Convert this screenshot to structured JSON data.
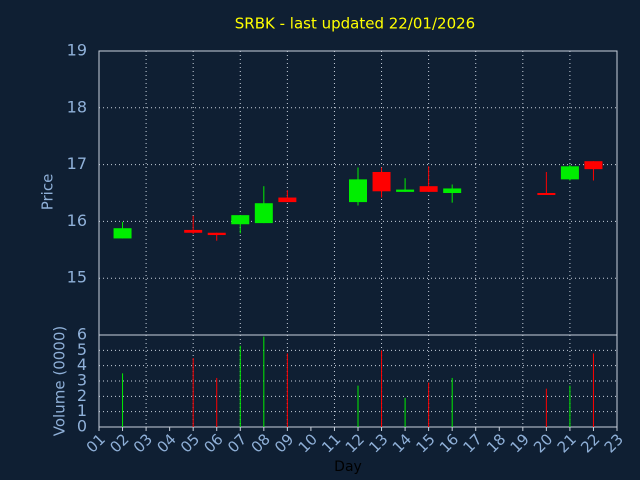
{
  "chart_data": {
    "type": "candlestick",
    "title": "SRBK - last updated 22/01/2026",
    "xlabel": "Day",
    "ylabel": "Price",
    "volume_label": "Volume (0000)",
    "categories": [
      "01",
      "02",
      "03",
      "04",
      "05",
      "06",
      "07",
      "08",
      "09",
      "10",
      "11",
      "12",
      "13",
      "14",
      "15",
      "16",
      "17",
      "18",
      "19",
      "20",
      "21",
      "22",
      "23"
    ],
    "open": [
      null,
      15.7,
      null,
      null,
      15.85,
      15.8,
      15.95,
      15.97,
      16.42,
      null,
      null,
      16.34,
      16.87,
      16.52,
      16.62,
      16.5,
      null,
      null,
      null,
      16.5,
      16.74,
      17.06,
      null
    ],
    "high": [
      null,
      15.99,
      null,
      null,
      16.1,
      15.8,
      16.11,
      16.62,
      16.55,
      null,
      null,
      16.95,
      16.95,
      16.76,
      16.97,
      16.65,
      null,
      null,
      null,
      16.87,
      17.0,
      17.06,
      null
    ],
    "low": [
      null,
      15.7,
      null,
      null,
      15.78,
      15.66,
      15.79,
      15.97,
      16.34,
      null,
      null,
      16.28,
      16.42,
      16.52,
      16.52,
      16.33,
      null,
      null,
      null,
      16.48,
      16.72,
      16.72,
      null
    ],
    "close": [
      null,
      15.88,
      null,
      null,
      15.8,
      15.76,
      16.11,
      16.32,
      16.34,
      null,
      null,
      16.74,
      16.53,
      16.56,
      16.52,
      16.58,
      null,
      null,
      null,
      16.48,
      16.97,
      16.92,
      null
    ],
    "volume": [
      null,
      3.5,
      null,
      null,
      4.5,
      3.2,
      5.3,
      5.9,
      4.8,
      null,
      null,
      2.7,
      5.0,
      1.9,
      2.9,
      3.2,
      null,
      null,
      null,
      2.5,
      2.7,
      4.8,
      null
    ],
    "up_color": "#00ee00",
    "down_color": "#ff0000",
    "ylim": [
      14,
      19
    ],
    "yticks": [
      15,
      16,
      17,
      18,
      19
    ],
    "y2lim": [
      0,
      6
    ],
    "y2ticks": [
      0,
      1,
      2,
      3,
      4,
      5,
      6
    ],
    "grid": true
  }
}
